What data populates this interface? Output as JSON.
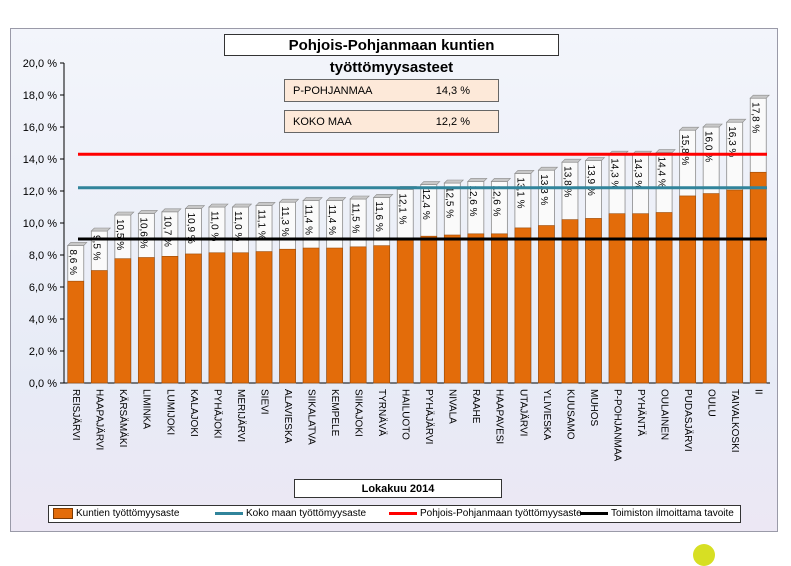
{
  "chart_data": {
    "type": "bar",
    "title": "Pohjois-Pohjanmaan kuntien työttömyysasteet",
    "period_label": "Lokakuu 2014",
    "ylim": [
      0,
      20
    ],
    "yticks": [
      "0,0 %",
      "2,0 %",
      "4,0 %",
      "6,0 %",
      "8,0 %",
      "10,0 %",
      "12,0 %",
      "14,0 %",
      "16,0 %",
      "18,0 %",
      "20,0 %"
    ],
    "grid": false,
    "legend_position": "bottom",
    "categories": [
      "REISJÄRVI",
      "HAAPAJÄRVI",
      "KÄRSÄMÄKI",
      "LIMINKA",
      "LUMIJOKI",
      "KALAJOKI",
      "PYHÄJOKI",
      "MERIJÄRVI",
      "SIEVI",
      "ALAVIESKA",
      "SIIKALATVA",
      "KEMPELE",
      "SIIKAJOKI",
      "TYRNÄVÄ",
      "HAILUOTO",
      "PYHÄJÄRVI",
      "NIVALA",
      "RAAHE",
      "HAAPAVESI",
      "UTAJÄRVI",
      "YLIVIESKA",
      "KUUSAMO",
      "MUHOS",
      "P-POHJANMAA",
      "PYHÄNTÄ",
      "OULAINEN",
      "PUDASJÄRVI",
      "OULU",
      "TAIVALKOSKI",
      "II"
    ],
    "values": [
      8.6,
      9.5,
      10.5,
      10.6,
      10.7,
      10.9,
      11.0,
      11.0,
      11.1,
      11.3,
      11.4,
      11.4,
      11.5,
      11.6,
      12.1,
      12.4,
      12.5,
      12.6,
      12.6,
      13.1,
      13.3,
      13.8,
      13.9,
      14.3,
      14.3,
      14.4,
      15.8,
      16.0,
      16.3,
      17.8
    ],
    "value_labels": [
      "8,6 %",
      "9,5 %",
      "10,5 %",
      "10,6 %",
      "10,7 %",
      "10,9 %",
      "11,0 %",
      "11,0 %",
      "11,1 %",
      "11,3 %",
      "11,4 %",
      "11,4 %",
      "11,5 %",
      "11,6 %",
      "12,1 %",
      "12,4 %",
      "12,5 %",
      "12,6 %",
      "12,6 %",
      "13,1 %",
      "13,3 %",
      "13,8 %",
      "13,9 %",
      "14,3 %",
      "14,3 %",
      "14,4 %",
      "15,8 %",
      "16,0 %",
      "16,3 %",
      "17,8 %"
    ],
    "series": [
      {
        "name": "Kuntien työttömyysaste",
        "kind": "bar",
        "color": "#e36c0a"
      },
      {
        "name": "Koko maan työttömyysaste",
        "kind": "line",
        "value": 12.2,
        "color": "#31849b"
      },
      {
        "name": "Pohjois-Pohjanmaan työttömyysaste",
        "kind": "line",
        "value": 14.3,
        "color": "#ff0000"
      },
      {
        "name": "Toimiston ilmoittama tavoite",
        "kind": "line",
        "value": 9.0,
        "color": "#000000"
      }
    ],
    "info_boxes": [
      {
        "label": "P-POHJANMAA",
        "value": "14,3 %"
      },
      {
        "label": "KOKO MAA",
        "value": "12,2 %"
      }
    ]
  }
}
